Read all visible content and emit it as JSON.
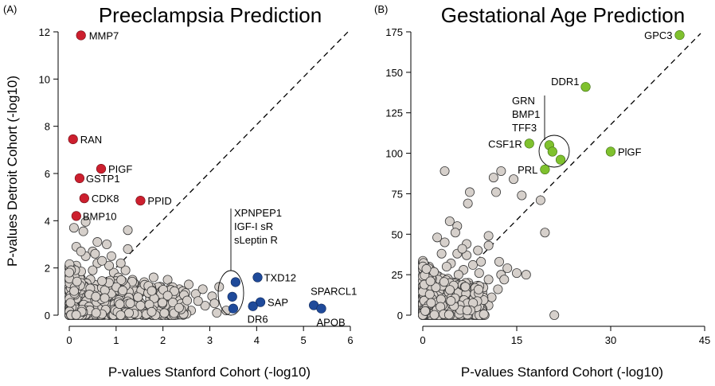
{
  "chart_data": [
    {
      "panel": "(A)",
      "title": "Preeclampsia Prediction",
      "type": "scatter",
      "xlabel": "P-values Stanford Cohort (-log10)",
      "ylabel": "P-values Detroit Cohort (-log10)",
      "xlim": [
        0,
        6
      ],
      "ylim": [
        0,
        12
      ],
      "xticks": [
        0,
        1,
        2,
        3,
        4,
        5,
        6
      ],
      "yticks": [
        0,
        2,
        4,
        6,
        8,
        10,
        12
      ],
      "diagonal": "dashed y = 2x",
      "highlighted": [
        {
          "label": "MMP7",
          "x": 0.25,
          "y": 11.85,
          "group": "red"
        },
        {
          "label": "RAN",
          "x": 0.08,
          "y": 7.45,
          "group": "red"
        },
        {
          "label": "PIGF",
          "x": 0.68,
          "y": 6.2,
          "group": "red"
        },
        {
          "label": "GSTP1",
          "x": 0.22,
          "y": 5.8,
          "group": "red"
        },
        {
          "label": "CDK8",
          "x": 0.32,
          "y": 4.95,
          "group": "red"
        },
        {
          "label": "PPID",
          "x": 1.52,
          "y": 4.85,
          "group": "red"
        },
        {
          "label": "BMP10",
          "x": 0.15,
          "y": 4.2,
          "group": "red"
        },
        {
          "label": "",
          "x": 3.55,
          "y": 1.4,
          "group": "blue"
        },
        {
          "label": "",
          "x": 3.48,
          "y": 0.78,
          "group": "blue"
        },
        {
          "label": "",
          "x": 3.5,
          "y": 0.28,
          "group": "blue"
        },
        {
          "label": "TXD12",
          "x": 4.02,
          "y": 1.6,
          "group": "blue"
        },
        {
          "label": "SAP",
          "x": 4.08,
          "y": 0.55,
          "group": "blue"
        },
        {
          "label": "DR6",
          "x": 3.92,
          "y": 0.38,
          "group": "blue"
        },
        {
          "label": "SPARCL1",
          "x": 5.22,
          "y": 0.42,
          "group": "blue"
        },
        {
          "label": "APOB",
          "x": 5.38,
          "y": 0.28,
          "group": "blue"
        }
      ],
      "group_label": [
        "XPNPEP1",
        "IGF-I sR",
        "sLeptin R"
      ],
      "background": [
        [
          0.1,
          3.7
        ],
        [
          0.3,
          3.55
        ],
        [
          0.35,
          3.95
        ],
        [
          0.5,
          2.7
        ],
        [
          0.6,
          3.1
        ],
        [
          0.6,
          2.2
        ],
        [
          0.9,
          2.5
        ],
        [
          1.25,
          2.8
        ],
        [
          1.25,
          3.6
        ],
        [
          0.35,
          2.5
        ],
        [
          0.15,
          2.9
        ],
        [
          0.8,
          3.0
        ],
        [
          0.55,
          2.6
        ],
        [
          0.95,
          1.8
        ],
        [
          1.2,
          1.9
        ],
        [
          1.35,
          1.5
        ],
        [
          1.6,
          1.4
        ],
        [
          1.8,
          1.6
        ],
        [
          1.95,
          1.2
        ],
        [
          2.1,
          1.5
        ],
        [
          2.35,
          1.1
        ],
        [
          2.55,
          1.3
        ],
        [
          2.7,
          0.9
        ],
        [
          2.85,
          1.1
        ],
        [
          3.05,
          0.8
        ],
        [
          3.2,
          1.2
        ],
        [
          3.1,
          0.5
        ],
        [
          2.4,
          0.6
        ],
        [
          2.9,
          0.4
        ],
        [
          2.2,
          0.2
        ],
        [
          3.35,
          0.2
        ],
        [
          1.7,
          0.9
        ],
        [
          2.0,
          0.7
        ],
        [
          1.5,
          0.3
        ],
        [
          0.2,
          1.5
        ],
        [
          0.4,
          1.2
        ],
        [
          0.7,
          1.4
        ],
        [
          0.3,
          0.9
        ],
        [
          0.1,
          0.6
        ],
        [
          0.05,
          0.3
        ],
        [
          0.2,
          0.1
        ],
        [
          0.45,
          0.3
        ],
        [
          0.6,
          0.6
        ],
        [
          0.75,
          0.2
        ],
        [
          0.9,
          0.8
        ],
        [
          1.0,
          0.4
        ],
        [
          1.1,
          1.1
        ],
        [
          1.3,
          0.6
        ],
        [
          1.4,
          0.2
        ],
        [
          0.15,
          2.1
        ],
        [
          0.5,
          1.9
        ],
        [
          0.85,
          2.1
        ],
        [
          1.05,
          1.6
        ],
        [
          0.25,
          2.7
        ],
        [
          0.7,
          2.3
        ],
        [
          1.1,
          2.2
        ],
        [
          1.9,
          0.4
        ],
        [
          2.6,
          0.2
        ],
        [
          2.3,
          0.9
        ],
        [
          0.05,
          1.0
        ],
        [
          0.35,
          0.5
        ],
        [
          1.55,
          1.0
        ],
        [
          1.85,
          0.15
        ],
        [
          2.75,
          0.6
        ],
        [
          3.15,
          0.1
        ]
      ]
    },
    {
      "panel": "(B)",
      "title": "Gestational Age Prediction",
      "type": "scatter",
      "xlabel": "P-values Stanford Cohort (-log10)",
      "ylabel": "",
      "xlim": [
        0,
        45
      ],
      "ylim": [
        0,
        175
      ],
      "xticks": [
        0,
        15,
        30,
        45
      ],
      "yticks": [
        0,
        25,
        50,
        75,
        100,
        125,
        150,
        175
      ],
      "diagonal": "dashed y = 4x",
      "highlighted": [
        {
          "label": "GPC3",
          "x": 41,
          "y": 173,
          "group": "green"
        },
        {
          "label": "DDR1",
          "x": 26,
          "y": 141,
          "group": "green"
        },
        {
          "label": "CSF1R",
          "x": 17,
          "y": 106,
          "group": "green"
        },
        {
          "label": "PlGF",
          "x": 30,
          "y": 101,
          "group": "green"
        },
        {
          "label": "PRL",
          "x": 19.5,
          "y": 90,
          "group": "green"
        },
        {
          "label": "",
          "x": 20.2,
          "y": 105,
          "group": "green"
        },
        {
          "label": "",
          "x": 20.7,
          "y": 101,
          "group": "green"
        },
        {
          "label": "",
          "x": 22,
          "y": 96,
          "group": "green"
        }
      ],
      "group_label": [
        "GRN",
        "BMP1",
        "TFF3"
      ],
      "background": [
        [
          3.5,
          89
        ],
        [
          12.5,
          89
        ],
        [
          11.3,
          85
        ],
        [
          14.5,
          84
        ],
        [
          7.5,
          76
        ],
        [
          11.7,
          76
        ],
        [
          15.8,
          74
        ],
        [
          18.8,
          71
        ],
        [
          7.2,
          69
        ],
        [
          4.3,
          58
        ],
        [
          5.5,
          55
        ],
        [
          5.2,
          51
        ],
        [
          2.3,
          48
        ],
        [
          3.5,
          45
        ],
        [
          7,
          44
        ],
        [
          10.5,
          43
        ],
        [
          12.2,
          33
        ],
        [
          13.5,
          29
        ],
        [
          15,
          26
        ],
        [
          16.5,
          25
        ],
        [
          19.5,
          51
        ],
        [
          10.5,
          49
        ],
        [
          4.5,
          32
        ],
        [
          6.5,
          28
        ],
        [
          8,
          31
        ],
        [
          9,
          26
        ],
        [
          10.5,
          22
        ],
        [
          12.5,
          25
        ],
        [
          13,
          22
        ],
        [
          2.5,
          24
        ],
        [
          1,
          30
        ],
        [
          0.8,
          18
        ],
        [
          5.5,
          38
        ],
        [
          3,
          38
        ],
        [
          7,
          37
        ],
        [
          8.8,
          40
        ],
        [
          6.3,
          41
        ],
        [
          21,
          0
        ],
        [
          2.5,
          8
        ],
        [
          4.8,
          15
        ],
        [
          6.5,
          12
        ],
        [
          8.2,
          10
        ],
        [
          9.5,
          15
        ],
        [
          1.5,
          5
        ],
        [
          3,
          2
        ],
        [
          5,
          5
        ],
        [
          6.6,
          4
        ],
        [
          8.3,
          3
        ],
        [
          10.5,
          6
        ],
        [
          0.5,
          12
        ],
        [
          2,
          14
        ],
        [
          4,
          20
        ],
        [
          1,
          3
        ],
        [
          2.5,
          18
        ],
        [
          7.3,
          20
        ],
        [
          5.7,
          25
        ],
        [
          3.8,
          30
        ],
        [
          9.3,
          33
        ],
        [
          0.3,
          8
        ],
        [
          6,
          0
        ],
        [
          11,
          11
        ],
        [
          12,
          16
        ]
      ]
    }
  ]
}
